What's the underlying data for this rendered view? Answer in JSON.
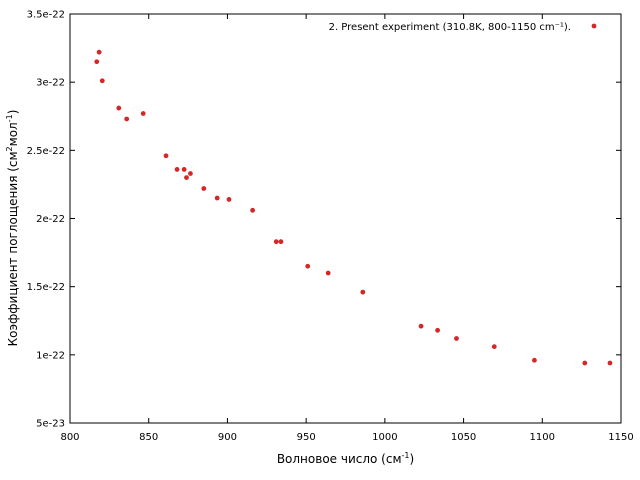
{
  "chart_data": {
    "type": "scatter",
    "xlabel": {
      "prefix": "Волновое число (см",
      "sup": "-1",
      "suffix": ")"
    },
    "ylabel": {
      "prefix": "Коэффициент поглощения (см",
      "sup1": "2",
      "mid": "мол",
      "sup2": "-1",
      "suffix": ")"
    },
    "xlim": [
      800,
      1150
    ],
    "ylim": [
      5e-23,
      3.5e-22
    ],
    "x_ticks": [
      800,
      850,
      900,
      950,
      1000,
      1050,
      1100,
      1150
    ],
    "x_tick_labels": [
      "800",
      "850",
      "900",
      "950",
      "1000",
      "1050",
      "1100",
      "1150"
    ],
    "y_ticks": [
      5e-23,
      1e-22,
      1.5e-22,
      2e-22,
      2.5e-22,
      3e-22,
      3.5e-22
    ],
    "y_tick_labels": [
      "5e-23",
      "1e-22",
      "1.5e-22",
      "2e-22",
      "2.5e-22",
      "3e-22",
      "3.5e-22"
    ],
    "grid": false,
    "legend_placement": "top-right",
    "series": [
      {
        "name": "2. Present experiment (310.8K, 800-1150 cm⁻¹).",
        "color": "#d62728",
        "marker": "circle",
        "points": [
          [
            817,
            3.15e-22
          ],
          [
            818.5,
            3.22e-22
          ],
          [
            820.5,
            3.01e-22
          ],
          [
            831,
            2.81e-22
          ],
          [
            836,
            2.73e-22
          ],
          [
            846.5,
            2.77e-22
          ],
          [
            861,
            2.46e-22
          ],
          [
            868,
            2.36e-22
          ],
          [
            872.5,
            2.36e-22
          ],
          [
            874,
            2.3e-22
          ],
          [
            876.5,
            2.33e-22
          ],
          [
            885,
            2.22e-22
          ],
          [
            893.5,
            2.15e-22
          ],
          [
            901,
            2.14e-22
          ],
          [
            916,
            2.06e-22
          ],
          [
            931,
            1.83e-22
          ],
          [
            934,
            1.83e-22
          ],
          [
            951,
            1.65e-22
          ],
          [
            964,
            1.6e-22
          ],
          [
            986,
            1.46e-22
          ],
          [
            1023,
            1.21e-22
          ],
          [
            1033.5,
            1.18e-22
          ],
          [
            1045.5,
            1.12e-22
          ],
          [
            1069.5,
            1.06e-22
          ],
          [
            1095,
            9.6e-23
          ],
          [
            1127,
            9.4e-23
          ],
          [
            1143,
            9.4e-23
          ]
        ]
      }
    ]
  }
}
